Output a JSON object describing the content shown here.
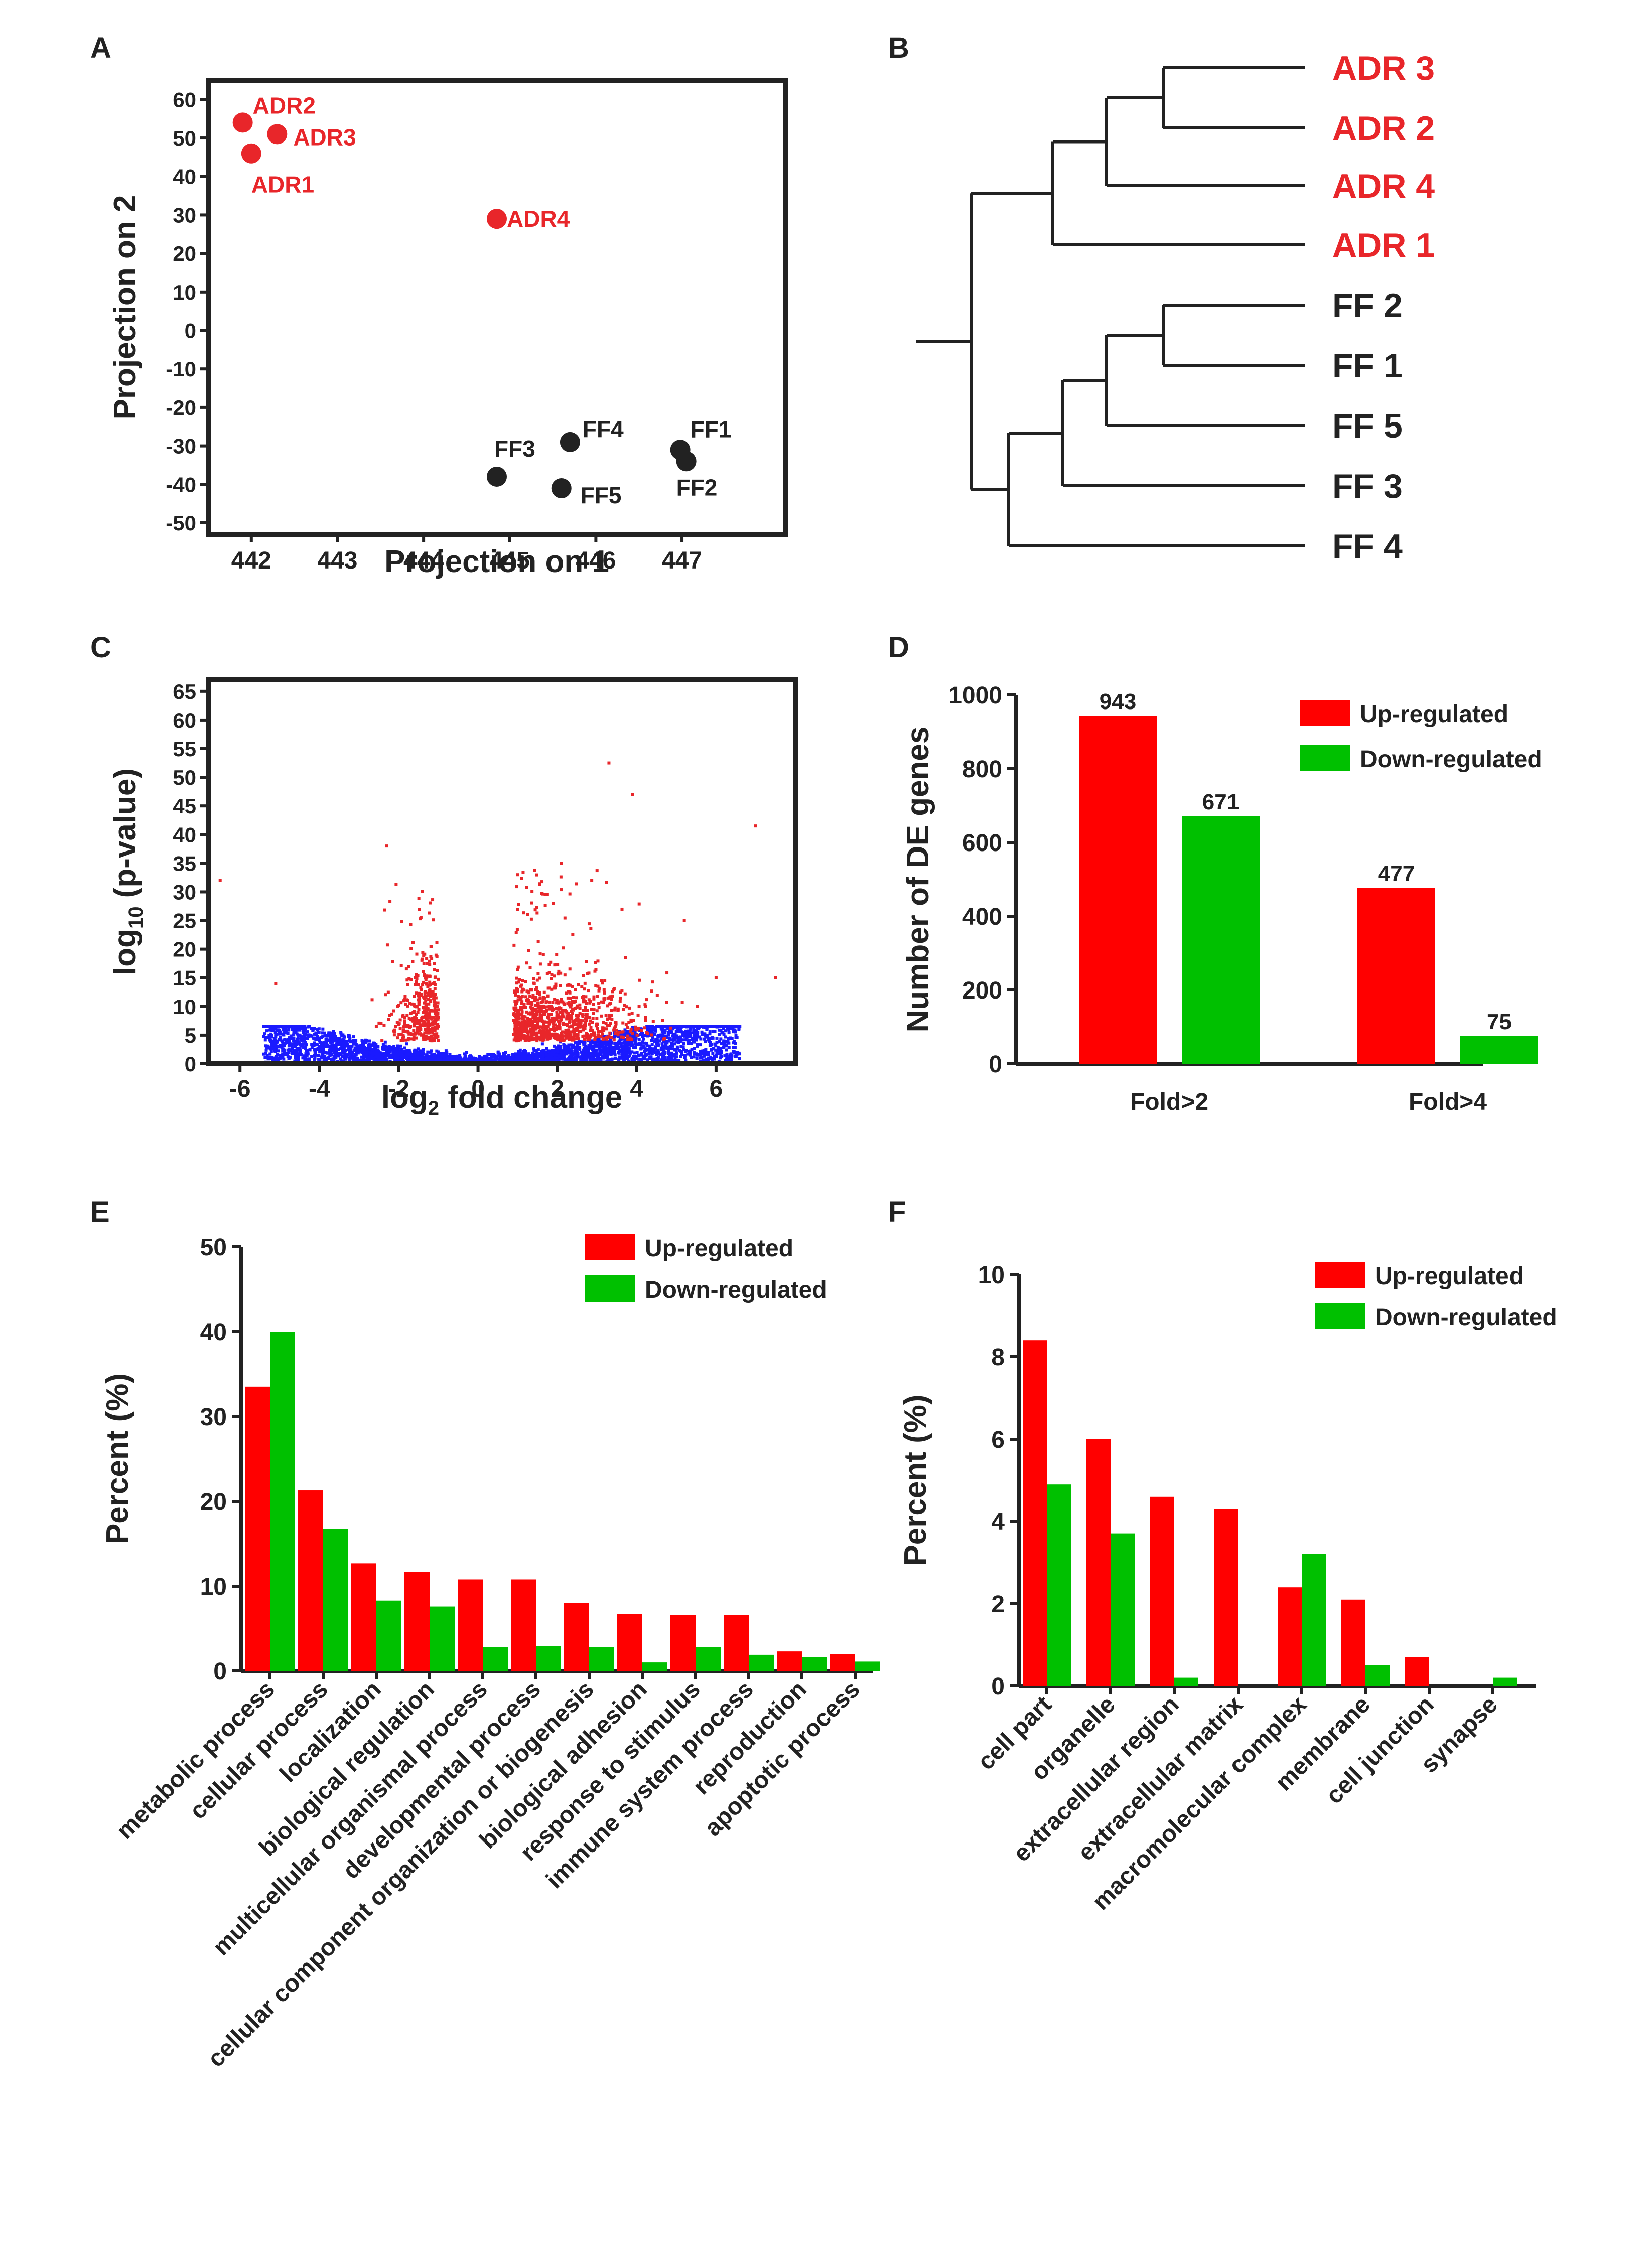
{
  "colors": {
    "up": "#ff0000",
    "down": "#00c000",
    "adr": "#e8262a",
    "ff": "#222222",
    "volcano_sig": "#e8262a",
    "volcano_ns": "#1a1aff"
  },
  "panelA": {
    "letter": "A",
    "xlabel": "Projection on 1",
    "ylabel": "Projection on 2",
    "xlim": [
      441.5,
      448.2
    ],
    "ylim": [
      -53,
      65
    ],
    "xticks": [
      442,
      443,
      444,
      445,
      446,
      447
    ],
    "yticks": [
      60,
      50,
      40,
      30,
      20,
      10,
      0,
      -10,
      -20,
      -30,
      -40,
      -50
    ],
    "points": [
      {
        "label": "ADR2",
        "x": 441.9,
        "y": 54,
        "group": "ADR"
      },
      {
        "label": "ADR3",
        "x": 442.3,
        "y": 51,
        "group": "ADR"
      },
      {
        "label": "ADR1",
        "x": 442.0,
        "y": 46,
        "group": "ADR"
      },
      {
        "label": "ADR4",
        "x": 444.85,
        "y": 29,
        "group": "ADR"
      },
      {
        "label": "FF4",
        "x": 445.7,
        "y": -29,
        "group": "FF"
      },
      {
        "label": "FF3",
        "x": 444.85,
        "y": -38,
        "group": "FF"
      },
      {
        "label": "FF5",
        "x": 445.6,
        "y": -41,
        "group": "FF"
      },
      {
        "label": "FF1",
        "x": 446.98,
        "y": -31,
        "group": "FF"
      },
      {
        "label": "FF2",
        "x": 447.05,
        "y": -34,
        "group": "FF"
      }
    ]
  },
  "panelB": {
    "letter": "B",
    "leaves": [
      {
        "label": "ADR 3",
        "group": "ADR"
      },
      {
        "label": "ADR 2",
        "group": "ADR"
      },
      {
        "label": "ADR 4",
        "group": "ADR"
      },
      {
        "label": "ADR 1",
        "group": "ADR"
      },
      {
        "label": "FF 2",
        "group": "FF"
      },
      {
        "label": "FF 1",
        "group": "FF"
      },
      {
        "label": "FF 5",
        "group": "FF"
      },
      {
        "label": "FF 3",
        "group": "FF"
      },
      {
        "label": "FF 4",
        "group": "FF"
      }
    ]
  },
  "panelC": {
    "letter": "C",
    "xlabel": "log",
    "xlabel_sub": "2",
    "xlabel_rest": " fold change",
    "ylabel": "log",
    "ylabel_sub": "10",
    "ylabel_rest": " (p-value)",
    "xlim": [
      -6.8,
      8.0
    ],
    "ylim": [
      0,
      67
    ],
    "xticks": [
      -6,
      -4,
      -2,
      0,
      2,
      4,
      6
    ],
    "yticks": [
      65,
      60,
      55,
      50,
      45,
      40,
      35,
      30,
      25,
      20,
      15,
      10,
      5,
      0
    ]
  },
  "panelD": {
    "letter": "D",
    "ylabel": "Number of DE genes",
    "ylim": [
      0,
      1000
    ],
    "yticks": [
      1000,
      800,
      600,
      400,
      200,
      0
    ],
    "categories": [
      "Fold>2",
      "Fold>4"
    ],
    "series": [
      {
        "name": "Up-regulated",
        "values": [
          943,
          477
        ]
      },
      {
        "name": "Down-regulated",
        "values": [
          671,
          75
        ]
      }
    ],
    "value_labels": [
      "943",
      "671",
      "477",
      "75"
    ]
  },
  "panelE": {
    "letter": "E",
    "ylabel": "Percent (%)",
    "ylim": [
      0,
      50
    ],
    "yticks": [
      50,
      40,
      30,
      20,
      10,
      0
    ],
    "legend": [
      "Up-regulated",
      "Down-regulated"
    ],
    "categories": [
      "metabolic process",
      "cellular process",
      "localization",
      "biological regulation",
      "multicellular organismal process",
      "developmental process",
      "cellular component organization or biogenesis",
      "biological adhesion",
      "response to stimulus",
      "immune system process",
      "reproduction",
      "apoptotic process"
    ],
    "series": [
      {
        "name": "Up-regulated",
        "values": [
          33.5,
          21.3,
          12.7,
          11.7,
          10.8,
          10.8,
          8.0,
          6.7,
          6.6,
          6.6,
          2.3,
          2.0
        ]
      },
      {
        "name": "Down-regulated",
        "values": [
          40.0,
          16.7,
          8.3,
          7.6,
          2.8,
          2.9,
          2.8,
          1.0,
          2.8,
          1.9,
          1.6,
          1.1
        ]
      }
    ]
  },
  "panelF": {
    "letter": "F",
    "ylabel": "Percent (%)",
    "ylim": [
      0,
      10
    ],
    "yticks": [
      10,
      8,
      6,
      4,
      2,
      0
    ],
    "legend": [
      "Up-regulated",
      "Down-regulated"
    ],
    "categories": [
      "cell part",
      "organelle",
      "extracellular region",
      "extracellular matrix",
      "macromolecular complex",
      "membrane",
      "cell junction",
      "synapse"
    ],
    "series": [
      {
        "name": "Up-regulated",
        "values": [
          8.4,
          6.0,
          4.6,
          4.3,
          2.4,
          2.1,
          0.7,
          0.0
        ]
      },
      {
        "name": "Down-regulated",
        "values": [
          4.9,
          3.7,
          0.2,
          0.0,
          3.2,
          0.5,
          0.0,
          0.2
        ]
      }
    ]
  },
  "chart_data": [
    {
      "type": "scatter",
      "title": "A",
      "xlabel": "Projection on 1",
      "ylabel": "Projection on 2",
      "xlim": [
        441.5,
        448.2
      ],
      "ylim": [
        -53,
        65
      ],
      "series": [
        {
          "name": "ADR",
          "x": [
            441.9,
            442.3,
            442.0,
            444.85
          ],
          "y": [
            54,
            51,
            46,
            29
          ]
        },
        {
          "name": "FF",
          "x": [
            445.7,
            444.85,
            445.6,
            446.98,
            447.05
          ],
          "y": [
            -29,
            -38,
            -41,
            -31,
            -34
          ]
        }
      ]
    },
    {
      "type": "dendrogram",
      "title": "B",
      "leaves": [
        "ADR 3",
        "ADR 2",
        "ADR 4",
        "ADR 1",
        "FF 2",
        "FF 1",
        "FF 5",
        "FF 3",
        "FF 4"
      ]
    },
    {
      "type": "scatter",
      "title": "C",
      "xlabel": "log2 fold change",
      "ylabel": "log10 (p-value)",
      "xlim": [
        -6.8,
        8.0
      ],
      "ylim": [
        0,
        67
      ]
    },
    {
      "type": "bar",
      "title": "D",
      "categories": [
        "Fold>2",
        "Fold>4"
      ],
      "ylabel": "Number of DE genes",
      "ylim": [
        0,
        1000
      ],
      "series": [
        {
          "name": "Up-regulated",
          "values": [
            943,
            477
          ]
        },
        {
          "name": "Down-regulated",
          "values": [
            671,
            75
          ]
        }
      ]
    },
    {
      "type": "bar",
      "title": "E",
      "ylabel": "Percent (%)",
      "ylim": [
        0,
        50
      ],
      "categories": [
        "metabolic process",
        "cellular process",
        "localization",
        "biological regulation",
        "multicellular organismal process",
        "developmental process",
        "cellular component organization or biogenesis",
        "biological adhesion",
        "response to stimulus",
        "immune system process",
        "reproduction",
        "apoptotic process"
      ],
      "series": [
        {
          "name": "Up-regulated",
          "values": [
            33.5,
            21.3,
            12.7,
            11.7,
            10.8,
            10.8,
            8.0,
            6.7,
            6.6,
            6.6,
            2.3,
            2.0
          ]
        },
        {
          "name": "Down-regulated",
          "values": [
            40.0,
            16.7,
            8.3,
            7.6,
            2.8,
            2.9,
            2.8,
            1.0,
            2.8,
            1.9,
            1.6,
            1.1
          ]
        }
      ]
    },
    {
      "type": "bar",
      "title": "F",
      "ylabel": "Percent (%)",
      "ylim": [
        0,
        10
      ],
      "categories": [
        "cell part",
        "organelle",
        "extracellular region",
        "extracellular matrix",
        "macromolecular complex",
        "membrane",
        "cell junction",
        "synapse"
      ],
      "series": [
        {
          "name": "Up-regulated",
          "values": [
            8.4,
            6.0,
            4.6,
            4.3,
            2.4,
            2.1,
            0.7,
            0.0
          ]
        },
        {
          "name": "Down-regulated",
          "values": [
            4.9,
            3.7,
            0.2,
            0.0,
            3.2,
            0.5,
            0.0,
            0.2
          ]
        }
      ]
    }
  ]
}
